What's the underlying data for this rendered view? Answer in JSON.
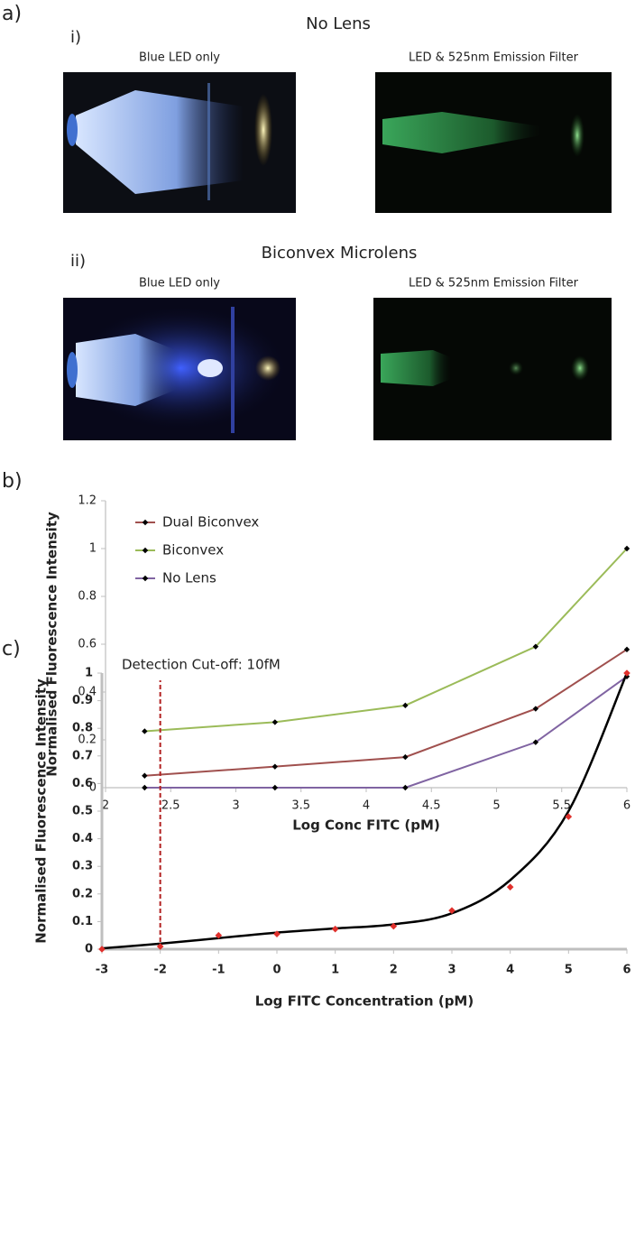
{
  "panels": {
    "a": {
      "label": "a)",
      "rows": [
        {
          "label": "i)",
          "title": "No Lens",
          "captions": [
            "Blue LED only",
            "LED & 525nm Emission Filter"
          ]
        },
        {
          "label": "ii)",
          "title": "Biconvex Microlens",
          "captions": [
            "Blue LED only",
            "LED & 525nm Emission Filter"
          ]
        }
      ]
    },
    "b": {
      "label": "b)"
    },
    "c": {
      "label": "c)"
    }
  },
  "chart_data": [
    {
      "type": "line",
      "xlabel": "Log Conc FITC (pM)",
      "ylabel": "Normalised Fluorescence Intensity",
      "x": [
        2.3,
        3.3,
        4.3,
        5.3,
        6
      ],
      "series": [
        {
          "name": "Dual Biconvex",
          "color": "#a0504e",
          "values": [
            0.05,
            0.088,
            0.128,
            0.33,
            0.578
          ]
        },
        {
          "name": "Biconvex",
          "color": "#9bbb59",
          "values": [
            0.236,
            0.274,
            0.344,
            0.59,
            1
          ]
        },
        {
          "name": "No Lens",
          "color": "#8064a2",
          "values": [
            0,
            0,
            0,
            0.19,
            0.465
          ]
        }
      ],
      "marker_color": "#000000",
      "xlim": [
        2,
        6
      ],
      "xticks": [
        2,
        2.5,
        3,
        3.5,
        4,
        4.5,
        5,
        5.5,
        6
      ],
      "ylim": [
        0,
        1.2
      ],
      "yticks": [
        0,
        0.2,
        0.4,
        0.6,
        0.8,
        1,
        1.2
      ],
      "grid": false,
      "legend": "top-left"
    },
    {
      "type": "scatter",
      "xlabel": "Log FITC Concentration (pM)",
      "ylabel": "Normalised Fluorescence Intensity",
      "x": [
        -3,
        -2,
        -1,
        0,
        1,
        2,
        3,
        4,
        5,
        6
      ],
      "values": [
        0,
        0.01,
        0.05,
        0.055,
        0.073,
        0.083,
        0.14,
        0.225,
        0.48,
        1
      ],
      "color": "#e0302c",
      "fit": {
        "color": "#000000",
        "x": [
          -3,
          -2,
          -1,
          0,
          1,
          2,
          3,
          4,
          5,
          6
        ],
        "values": [
          0.003,
          0.02,
          0.04,
          0.06,
          0.075,
          0.09,
          0.13,
          0.25,
          0.5,
          1
        ]
      },
      "cutoff": {
        "x": -2,
        "color": "#b22222",
        "label": "Detection Cut-off: 10fM"
      },
      "xlim": [
        -3,
        6
      ],
      "xticks": [
        -3,
        -2,
        -1,
        0,
        1,
        2,
        3,
        4,
        5,
        6
      ],
      "ylim": [
        0,
        1
      ],
      "yticks": [
        0,
        0.1,
        0.2,
        0.3,
        0.4,
        0.5,
        0.6,
        0.7,
        0.8,
        0.9,
        1
      ],
      "grid": false
    }
  ]
}
